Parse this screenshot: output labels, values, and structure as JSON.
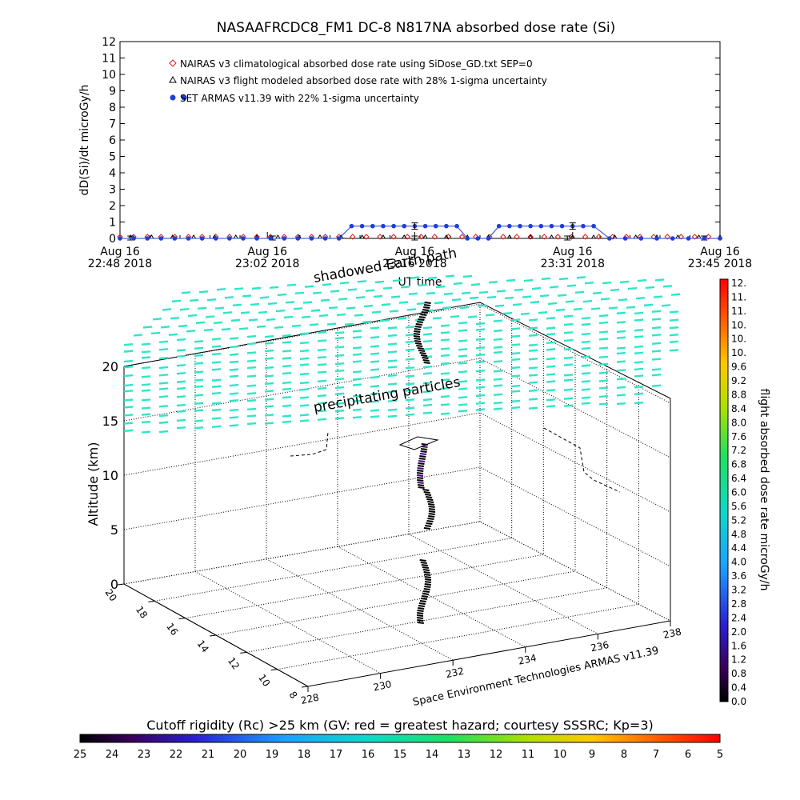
{
  "chart_data": [
    {
      "type": "line",
      "title": "NASAAFRCDC8_FM1 DC-8    N817NA absorbed dose rate (Si)",
      "ylabel": "dD(Si)/dt microGy/h",
      "xlabel": "UT time",
      "ylim": [
        0,
        12
      ],
      "yticks": [
        "0",
        "1",
        "2",
        "3",
        "4",
        "5",
        "6",
        "7",
        "8",
        "9",
        "10",
        "11",
        "12"
      ],
      "xticks": [
        {
          "line1": "Aug 16",
          "line2": "22:48 2018"
        },
        {
          "line1": "Aug 16",
          "line2": "23:02 2018"
        },
        {
          "line1": "Aug 16",
          "line2": "23:16 2018"
        },
        {
          "line1": "Aug 16",
          "line2": "23:31 2018"
        },
        {
          "line1": "Aug 16",
          "line2": "23:45 2018"
        }
      ],
      "x_minutes_from_2248": [
        0,
        14,
        28,
        43,
        57
      ],
      "legend": [
        {
          "label": "NAIRAS v3 climatological absorbed dose rate using SiDose_GD.txt SEP=0",
          "marker": "diamond",
          "color": "#d81e1e"
        },
        {
          "label": "NAIRAS v3 flight modeled absorbed dose rate with 28% 1-sigma uncertainty",
          "marker": "triangle",
          "color": "#000000"
        },
        {
          "label": "SET ARMAS v11.39 with 22% 1-sigma uncertainty",
          "marker": "circle",
          "color": "#1f3fd6"
        }
      ],
      "series": [
        {
          "name": "NAIRAS v3 climatological absorbed dose rate using SiDose_GD.txt SEP=0",
          "x_minutes": [
            0,
            1.3,
            2.6,
            3.9,
            5.2,
            6.5,
            7.8,
            9.1,
            10.4,
            11.7,
            13,
            14.3,
            15.6,
            16.9,
            18.2,
            19.5,
            20.8,
            22.1,
            23.4,
            24.7,
            26,
            27.3,
            28.6,
            29.9,
            31.2,
            32.5,
            33.8,
            35.1,
            36.4,
            37.7,
            39,
            40.3,
            41.6,
            42.9,
            44.2,
            45.5,
            46.8,
            48.1,
            49.4,
            50.7,
            52,
            53.3,
            54.6,
            55.9
          ],
          "values": [
            0.05,
            0.05,
            0.05,
            0.05,
            0.05,
            0.05,
            0.05,
            0.05,
            0.05,
            0.05,
            0.05,
            0.05,
            0.05,
            0.05,
            0.05,
            0.05,
            0.05,
            0.05,
            0.05,
            0.05,
            0.05,
            0.05,
            0.05,
            0.05,
            0.05,
            0.05,
            0.05,
            0.05,
            0.05,
            0.05,
            0.05,
            0.05,
            0.05,
            0.05,
            0.05,
            0.05,
            0.05,
            0.05,
            0.05,
            0.05,
            0.05,
            0.05,
            0.05,
            0.05
          ]
        },
        {
          "name": "NAIRAS v3 flight modeled absorbed dose rate with 28% 1-sigma uncertainty",
          "x_minutes": [
            1,
            3,
            5,
            7,
            9,
            11,
            13,
            15,
            17,
            19,
            21,
            23,
            25,
            27,
            29,
            31,
            33,
            35,
            37,
            39,
            41,
            43,
            45,
            47,
            49,
            51,
            53,
            55,
            57
          ],
          "values": [
            0,
            0,
            0,
            0,
            0,
            0,
            0,
            0,
            0,
            0,
            0,
            0,
            0,
            0,
            0,
            0,
            0,
            0,
            0,
            0,
            0,
            0,
            0,
            0,
            0,
            0,
            0,
            0,
            0
          ],
          "error_bars_at_minutes": [
            1,
            14.5,
            28,
            42.5,
            55.5
          ]
        },
        {
          "name": "SET ARMAS v11.39 with 22% 1-sigma uncertainty",
          "x_minutes": [
            0,
            1.3,
            2.6,
            3.9,
            5.2,
            6.5,
            7.8,
            9.1,
            10.4,
            11.7,
            13,
            14.3,
            15.6,
            16.9,
            18.2,
            19.5,
            20.8,
            22,
            23,
            24,
            25,
            26,
            27,
            28,
            29,
            30,
            31,
            32,
            33,
            34,
            35,
            36,
            37,
            38,
            39,
            40,
            41,
            42,
            43,
            44,
            45,
            46.5,
            48,
            49.5,
            51,
            52.5,
            54,
            55.5,
            57
          ],
          "values": [
            0,
            0,
            0,
            0,
            0,
            0,
            0,
            0,
            0,
            0,
            0,
            0,
            0,
            0,
            0,
            0,
            0,
            0.75,
            0.75,
            0.75,
            0.75,
            0.75,
            0.75,
            0.75,
            0.75,
            0.75,
            0.75,
            0.75,
            0,
            0,
            0,
            0.75,
            0.75,
            0.75,
            0.75,
            0.75,
            0.75,
            0.75,
            0.75,
            0.75,
            0.75,
            0,
            0,
            0,
            0,
            0,
            0,
            0,
            0
          ],
          "error_bars_at_minutes": [
            28,
            43
          ]
        }
      ]
    },
    {
      "type": "scatter",
      "subtype": "3d-trajectory",
      "zlabel": "Altitude (km)",
      "zticks": [
        "0",
        "5",
        "10",
        "15",
        "20"
      ],
      "depth_ticks": [
        "20",
        "18",
        "16",
        "14",
        "12",
        "10",
        "8"
      ],
      "lon_ticks": [
        "228",
        "230",
        "232",
        "234",
        "236",
        "238"
      ],
      "caption": "Space Environment Technologies ARMAS v11.39",
      "annotations": [
        "shadowed Earth path",
        "precipitating particles"
      ],
      "cutoff_rigidity_layer_color": "#2ee6c8",
      "track_color": "#000000"
    }
  ],
  "colorbar_right": {
    "title": "flight absorbed dose rate microGy/h",
    "ticks": [
      "0.0",
      "0.4",
      "0.8",
      "1.2",
      "1.6",
      "2.0",
      "2.4",
      "2.8",
      "3.2",
      "3.6",
      "4.0",
      "4.4",
      "4.8",
      "5.2",
      "5.6",
      "6.0",
      "6.4",
      "6.8",
      "7.2",
      "7.6",
      "8.0",
      "8.4",
      "8.8",
      "9.2",
      "9.6",
      "10.",
      "10.",
      "10.",
      "11.",
      "11.",
      "12."
    ]
  },
  "colorbar_bottom": {
    "title": "Cutoff rigidity (Rc) >25 km (GV: red = greatest hazard; courtesy SSSRC; Kp=3)",
    "ticks": [
      "25",
      "24",
      "23",
      "22",
      "21",
      "20",
      "19",
      "18",
      "17",
      "16",
      "15",
      "14",
      "13",
      "12",
      "11",
      "10",
      "9",
      "8",
      "7",
      "6",
      "5"
    ]
  }
}
